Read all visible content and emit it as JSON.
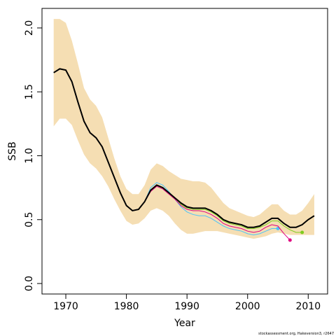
{
  "chart_data": {
    "type": "line",
    "xlabel": "Year",
    "ylabel": "SSB",
    "footnote": "stockassessment.org, Hakeversion3, r2647",
    "x": [
      1968,
      1969,
      1970,
      1971,
      1972,
      1973,
      1974,
      1975,
      1976,
      1977,
      1978,
      1979,
      1980,
      1981,
      1982,
      1983,
      1984,
      1985,
      1986,
      1987,
      1988,
      1989,
      1990,
      1991,
      1992,
      1993,
      1994,
      1995,
      1996,
      1997,
      1998,
      1999,
      2000,
      2001,
      2002,
      2003,
      2004,
      2005,
      2006,
      2007,
      2008,
      2009,
      2010,
      2011
    ],
    "band": {
      "color": "#f5deb3",
      "upper": [
        2.07,
        2.07,
        2.04,
        1.9,
        1.72,
        1.53,
        1.44,
        1.39,
        1.3,
        1.14,
        0.98,
        0.84,
        0.74,
        0.7,
        0.7,
        0.77,
        0.89,
        0.94,
        0.92,
        0.88,
        0.85,
        0.82,
        0.81,
        0.8,
        0.8,
        0.79,
        0.75,
        0.69,
        0.63,
        0.59,
        0.57,
        0.55,
        0.53,
        0.52,
        0.54,
        0.58,
        0.62,
        0.62,
        0.57,
        0.54,
        0.54,
        0.57,
        0.63,
        0.7
      ],
      "lower": [
        1.23,
        1.29,
        1.29,
        1.24,
        1.12,
        1.01,
        0.94,
        0.9,
        0.84,
        0.76,
        0.66,
        0.57,
        0.49,
        0.46,
        0.47,
        0.51,
        0.57,
        0.59,
        0.57,
        0.53,
        0.47,
        0.42,
        0.39,
        0.39,
        0.4,
        0.41,
        0.41,
        0.41,
        0.4,
        0.39,
        0.38,
        0.37,
        0.36,
        0.35,
        0.36,
        0.37,
        0.39,
        0.4,
        0.39,
        0.38,
        0.38,
        0.38,
        0.38,
        0.38
      ]
    },
    "series": [
      {
        "color": "#4fc3f7",
        "end_marker": true,
        "width": 1,
        "values": [
          1.65,
          1.68,
          1.67,
          1.58,
          1.42,
          1.27,
          1.18,
          1.14,
          1.07,
          0.95,
          0.83,
          0.71,
          0.61,
          0.57,
          0.58,
          0.64,
          0.75,
          0.79,
          0.77,
          0.72,
          0.66,
          0.6,
          0.56,
          0.54,
          0.53,
          0.53,
          0.51,
          0.48,
          0.45,
          0.43,
          0.42,
          0.41,
          0.39,
          0.38,
          0.39,
          0.41,
          0.43,
          0.43,
          null,
          null,
          null,
          null,
          null,
          null
        ]
      },
      {
        "color": "#e0007f",
        "end_marker": true,
        "width": 1,
        "values": [
          1.65,
          1.68,
          1.67,
          1.58,
          1.42,
          1.27,
          1.18,
          1.14,
          1.07,
          0.95,
          0.83,
          0.71,
          0.61,
          0.57,
          0.58,
          0.64,
          0.72,
          0.76,
          0.74,
          0.7,
          0.66,
          0.61,
          0.58,
          0.57,
          0.57,
          0.56,
          0.54,
          0.51,
          0.47,
          0.45,
          0.44,
          0.43,
          0.41,
          0.4,
          0.41,
          0.44,
          0.46,
          0.45,
          0.39,
          0.34,
          null,
          null,
          null,
          null
        ]
      },
      {
        "color": "#7fcc1f",
        "end_marker": true,
        "width": 1,
        "values": [
          1.65,
          1.68,
          1.67,
          1.58,
          1.42,
          1.27,
          1.18,
          1.14,
          1.07,
          0.95,
          0.83,
          0.71,
          0.61,
          0.57,
          0.58,
          0.64,
          0.73,
          0.77,
          0.75,
          0.71,
          0.67,
          0.62,
          0.59,
          0.58,
          0.58,
          0.58,
          0.56,
          0.53,
          0.49,
          0.47,
          0.46,
          0.45,
          0.43,
          0.43,
          0.44,
          0.46,
          0.49,
          0.49,
          0.45,
          0.42,
          0.4,
          0.4,
          null,
          null
        ]
      },
      {
        "color": "#000000",
        "end_marker": false,
        "width": 2,
        "values": [
          1.65,
          1.68,
          1.67,
          1.58,
          1.42,
          1.27,
          1.18,
          1.14,
          1.07,
          0.95,
          0.83,
          0.71,
          0.61,
          0.57,
          0.58,
          0.64,
          0.73,
          0.77,
          0.75,
          0.71,
          0.67,
          0.63,
          0.6,
          0.59,
          0.59,
          0.59,
          0.57,
          0.54,
          0.5,
          0.48,
          0.47,
          0.46,
          0.44,
          0.44,
          0.45,
          0.48,
          0.51,
          0.51,
          0.47,
          0.44,
          0.44,
          0.46,
          0.5,
          0.53
        ]
      }
    ],
    "xlim": [
      1966.07,
      2013.2
    ],
    "ylim": [
      -0.082,
      2.153
    ],
    "xticks": [
      1970,
      1980,
      1990,
      2000,
      2010
    ],
    "yticks": [
      {
        "value": 0,
        "label": "0.0"
      },
      0.5,
      {
        "value": 1,
        "label": "1.0"
      },
      1.5,
      {
        "value": 2,
        "label": "2.0"
      }
    ]
  }
}
